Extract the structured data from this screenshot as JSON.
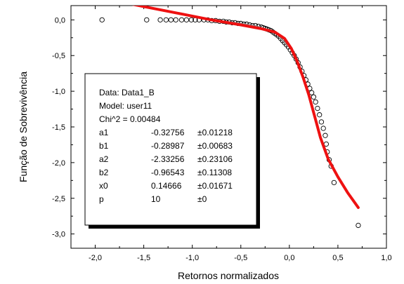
{
  "chart_data": {
    "type": "scatter",
    "xlabel": "Retornos normalizados",
    "ylabel": "Função de Sobrevivência",
    "xlim": [
      -2.25,
      1.0
    ],
    "ylim": [
      -3.2,
      0.2
    ],
    "xticks": [
      -2.0,
      -1.5,
      -1.0,
      -0.5,
      0.0,
      0.5,
      1.0
    ],
    "xtick_labels": [
      "-2,0",
      "-1,5",
      "-1,0",
      "-0,5",
      "0,0",
      "0,5",
      "1,0"
    ],
    "yticks": [
      0.0,
      -0.5,
      -1.0,
      -1.5,
      -2.0,
      -2.5,
      -3.0
    ],
    "ytick_labels": [
      "0,0",
      "-0,5",
      "-1,0",
      "-1,5",
      "-2,0",
      "-2,5",
      "-3,0"
    ],
    "grid": false,
    "series": [
      {
        "kind": "markers",
        "marker": "open-circle",
        "color": "#000000",
        "points": [
          [
            -1.93,
            0.0
          ],
          [
            -1.47,
            0.0
          ],
          [
            -1.33,
            0.0
          ],
          [
            -1.27,
            0.0
          ],
          [
            -1.22,
            0.0
          ],
          [
            -1.17,
            0.0
          ],
          [
            -1.11,
            0.0
          ],
          [
            -1.06,
            0.0
          ],
          [
            -1.01,
            0.0
          ],
          [
            -0.97,
            0.0
          ],
          [
            -0.93,
            0.0
          ],
          [
            -0.88,
            0.0
          ],
          [
            -0.84,
            0.0
          ],
          [
            -0.8,
            -0.01
          ],
          [
            -0.76,
            -0.01
          ],
          [
            -0.72,
            -0.02
          ],
          [
            -0.68,
            -0.02
          ],
          [
            -0.65,
            -0.03
          ],
          [
            -0.62,
            -0.03
          ],
          [
            -0.59,
            -0.04
          ],
          [
            -0.56,
            -0.04
          ],
          [
            -0.53,
            -0.05
          ],
          [
            -0.5,
            -0.05
          ],
          [
            -0.47,
            -0.06
          ],
          [
            -0.44,
            -0.06
          ],
          [
            -0.41,
            -0.07
          ],
          [
            -0.38,
            -0.08
          ],
          [
            -0.35,
            -0.08
          ],
          [
            -0.32,
            -0.09
          ],
          [
            -0.29,
            -0.1
          ],
          [
            -0.27,
            -0.11
          ],
          [
            -0.25,
            -0.12
          ],
          [
            -0.23,
            -0.13
          ],
          [
            -0.21,
            -0.14
          ],
          [
            -0.19,
            -0.15
          ],
          [
            -0.17,
            -0.17
          ],
          [
            -0.15,
            -0.19
          ],
          [
            -0.13,
            -0.21
          ],
          [
            -0.11,
            -0.23
          ],
          [
            -0.09,
            -0.26
          ],
          [
            -0.07,
            -0.29
          ],
          [
            -0.05,
            -0.32
          ],
          [
            -0.03,
            -0.35
          ],
          [
            -0.01,
            -0.38
          ],
          [
            0.01,
            -0.42
          ],
          [
            0.03,
            -0.46
          ],
          [
            0.05,
            -0.5
          ],
          [
            0.07,
            -0.55
          ],
          [
            0.09,
            -0.6
          ],
          [
            0.11,
            -0.66
          ],
          [
            0.13,
            -0.72
          ],
          [
            0.15,
            -0.78
          ],
          [
            0.17,
            -0.84
          ],
          [
            0.19,
            -0.9
          ],
          [
            0.21,
            -0.96
          ],
          [
            0.23,
            -1.02
          ],
          [
            0.25,
            -1.08
          ],
          [
            0.27,
            -1.15
          ],
          [
            0.29,
            -1.24
          ],
          [
            0.31,
            -1.33
          ],
          [
            0.33,
            -1.43
          ],
          [
            0.35,
            -1.52
          ],
          [
            0.37,
            -1.62
          ],
          [
            0.38,
            -1.74
          ],
          [
            0.39,
            -1.85
          ],
          [
            0.41,
            -1.96
          ],
          [
            0.43,
            -2.05
          ],
          [
            0.46,
            -2.28
          ],
          [
            0.71,
            -2.88
          ]
        ]
      },
      {
        "kind": "fit-line",
        "color": "#ee1111",
        "points": [
          [
            -1.7,
            0.24
          ],
          [
            -1.4,
            0.16
          ],
          [
            -1.1,
            0.08
          ],
          [
            -0.8,
            0.0
          ],
          [
            -0.5,
            -0.07
          ],
          [
            -0.3,
            -0.12
          ],
          [
            -0.15,
            -0.17
          ],
          [
            -0.05,
            -0.26
          ],
          [
            0.02,
            -0.4
          ],
          [
            0.08,
            -0.58
          ],
          [
            0.14,
            -0.8
          ],
          [
            0.2,
            -1.05
          ],
          [
            0.26,
            -1.35
          ],
          [
            0.32,
            -1.65
          ],
          [
            0.4,
            -1.95
          ],
          [
            0.5,
            -2.2
          ],
          [
            0.6,
            -2.42
          ],
          [
            0.71,
            -2.63
          ]
        ]
      }
    ],
    "fit_box": {
      "rows": [
        {
          "name": "Data: Data1_B",
          "value": "",
          "error": ""
        },
        {
          "name": "Model: user11",
          "value": "",
          "error": ""
        },
        {
          "name": "Chi^2 = 0.00484",
          "value": "",
          "error": ""
        },
        {
          "name": "a1",
          "value": "-0.32756",
          "error": "±0.01218"
        },
        {
          "name": "b1",
          "value": "-0.28987",
          "error": "±0.00683"
        },
        {
          "name": "a2",
          "value": "-2.33256",
          "error": "±0.23106"
        },
        {
          "name": "b2",
          "value": "-0.96543",
          "error": "±0.11308"
        },
        {
          "name": "x0",
          "value": "0.14666",
          "error": "±0.01671"
        },
        {
          "name": "p",
          "value": "10",
          "error": "±0"
        }
      ]
    }
  }
}
